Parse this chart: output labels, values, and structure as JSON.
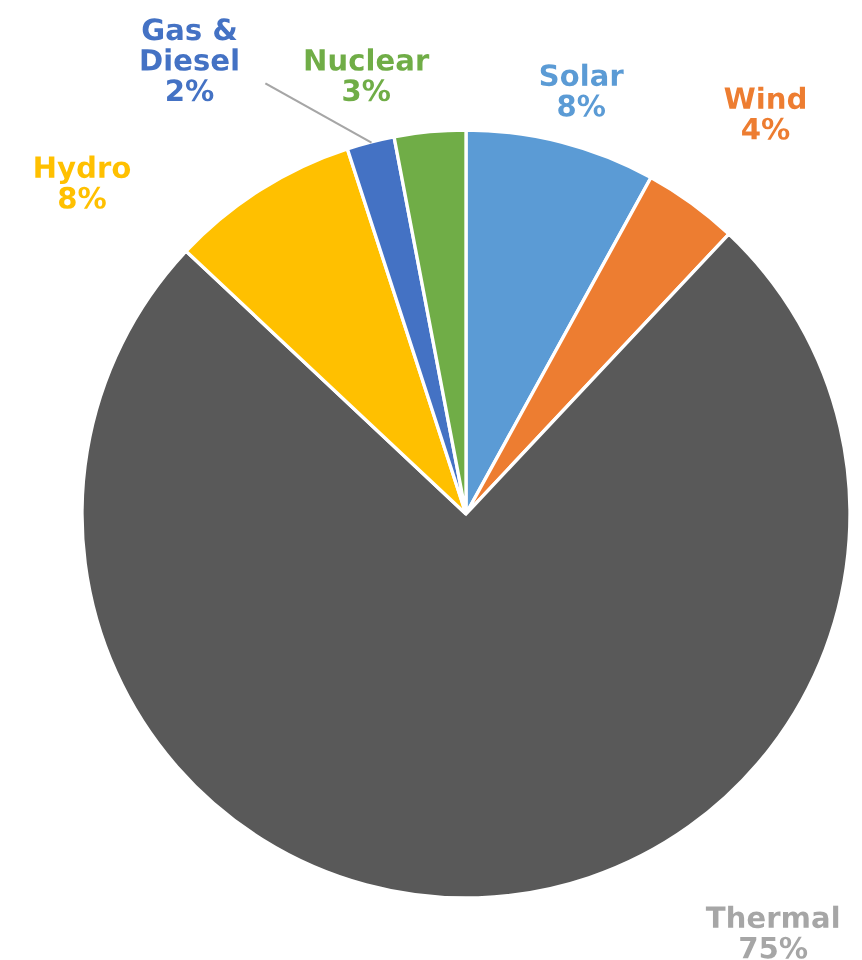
{
  "chart_data": {
    "type": "pie",
    "categories": [
      "Solar",
      "Wind",
      "Thermal",
      "Hydro",
      "Gas & Diesel",
      "Nuclear"
    ],
    "values": [
      8,
      4,
      75,
      8,
      2,
      3
    ],
    "value_labels": [
      "8%",
      "4%",
      "75%",
      "8%",
      "2%",
      "3%"
    ],
    "colors": [
      "#5b9bd5",
      "#ed7d31",
      "#595959",
      "#ffc000",
      "#4472c4",
      "#70ad47"
    ]
  }
}
